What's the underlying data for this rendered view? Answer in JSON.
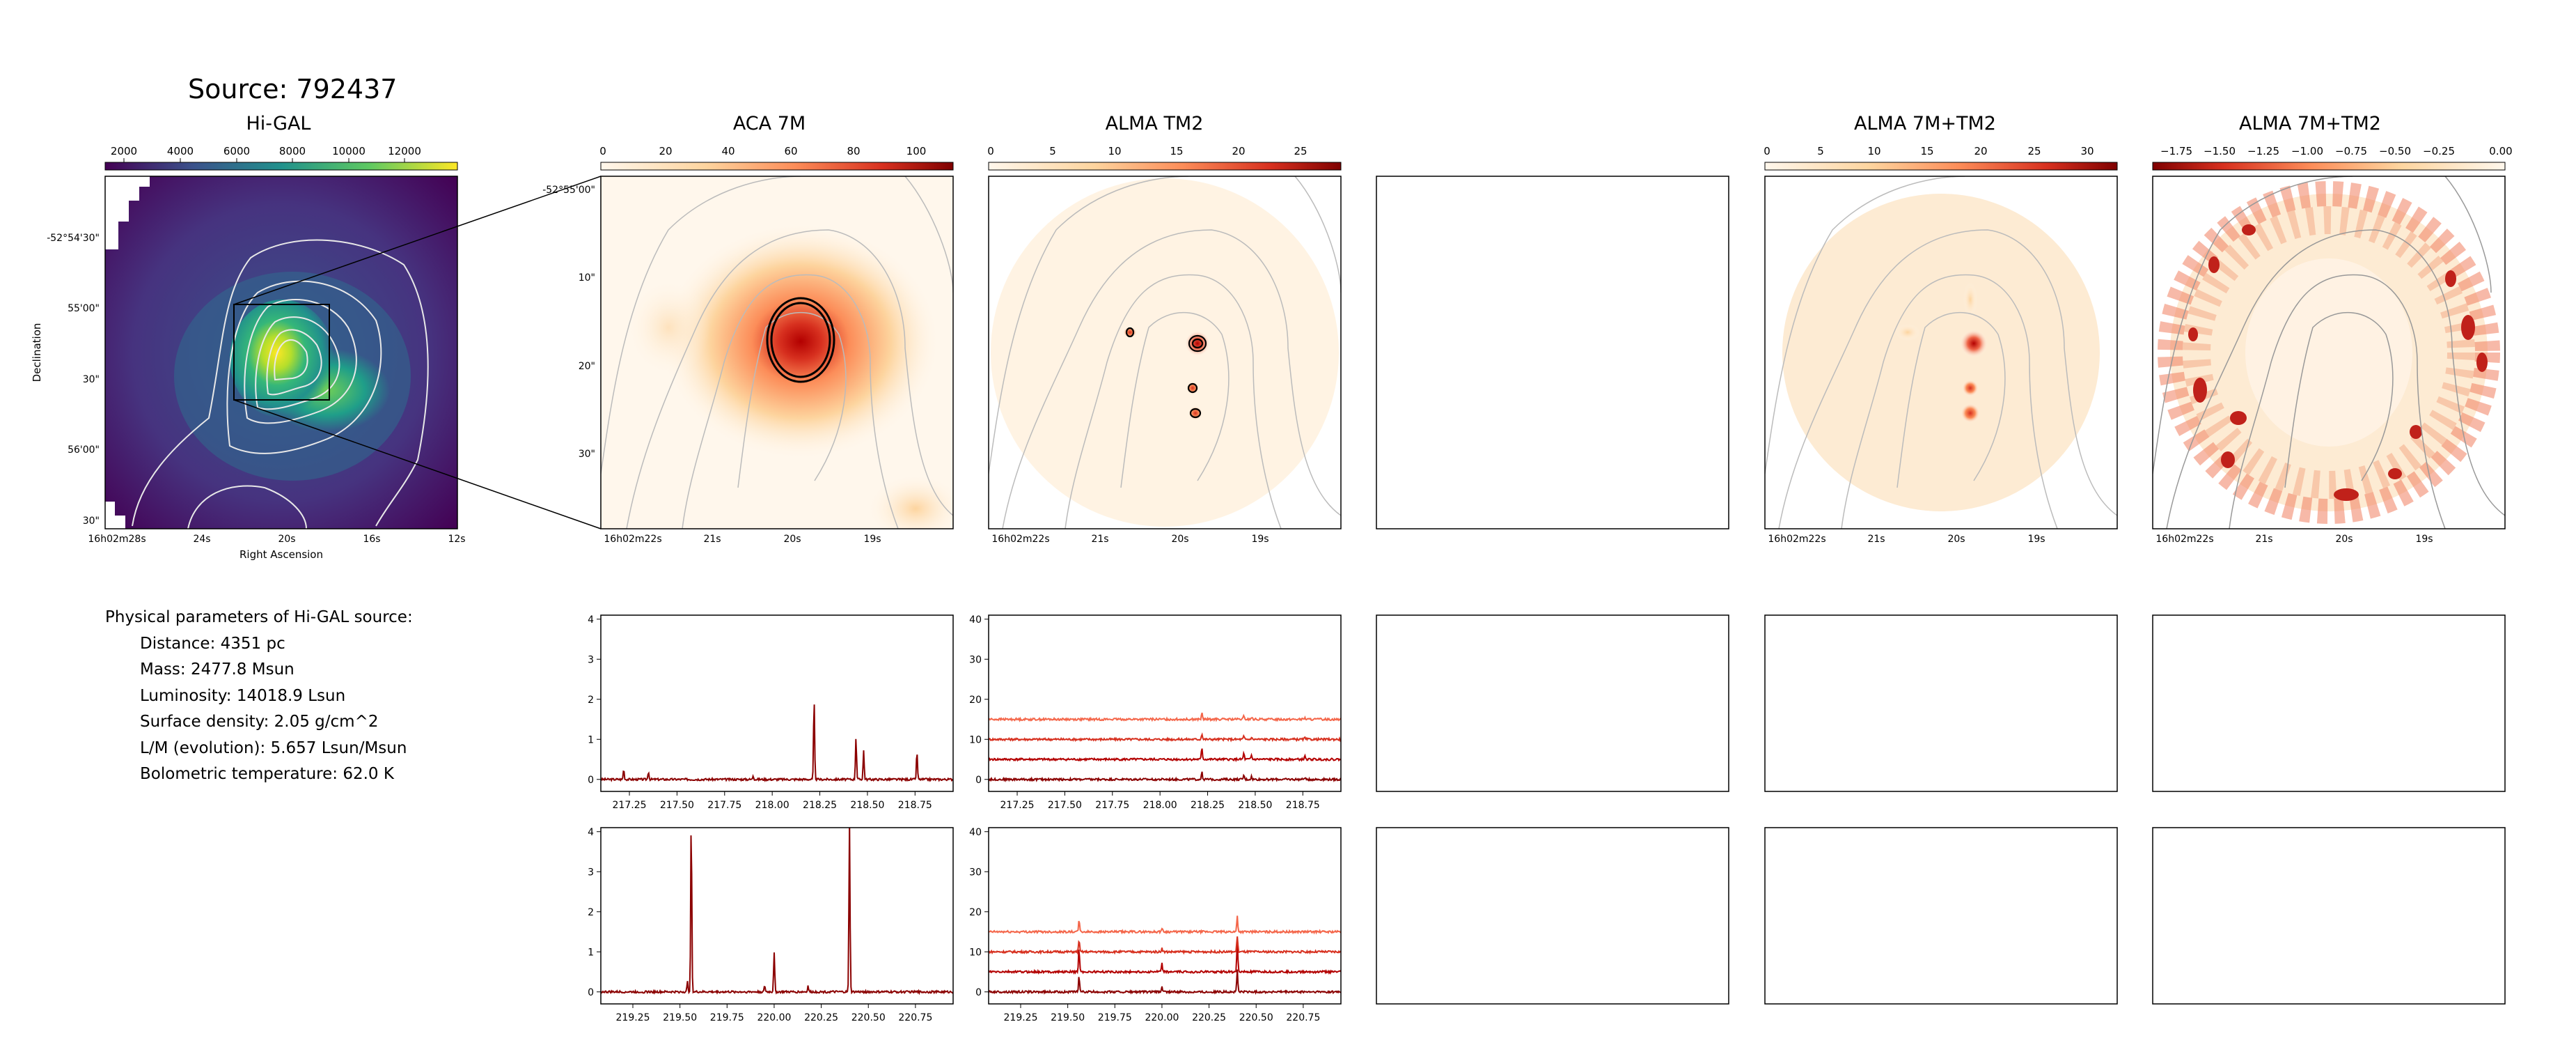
{
  "source_title": "Source: 792437",
  "panels": {
    "higal": "Hi-GAL",
    "aca": "ACA 7M",
    "tm2": "ALMA TM2",
    "combo": "ALMA 7M+TM2",
    "combo2": "ALMA 7M+TM2"
  },
  "axes": {
    "dec_label": "Declination",
    "ra_label": "Right Ascension",
    "dec_ticks_higal": [
      "-52°54'30\"",
      "55'00\"",
      "30\"",
      "56'00\"",
      "30\""
    ],
    "ra_ticks_higal": [
      "16h02m28s",
      "24s",
      "20s",
      "16s",
      "12s"
    ],
    "dec_ticks_zoom": [
      "-52°55'00\"",
      "10\"",
      "20\"",
      "30\""
    ],
    "ra_ticks_zoom": [
      "16h02m22s",
      "21s",
      "20s",
      "19s"
    ]
  },
  "colorbars": {
    "higal": [
      "2000",
      "4000",
      "6000",
      "8000",
      "10000",
      "12000"
    ],
    "aca": [
      "0",
      "20",
      "40",
      "60",
      "80",
      "100"
    ],
    "tm2": [
      "0",
      "5",
      "10",
      "15",
      "20",
      "25"
    ],
    "combo": [
      "0",
      "5",
      "10",
      "15",
      "20",
      "25",
      "30"
    ],
    "combo2": [
      "−1.75",
      "−1.50",
      "−1.25",
      "−1.00",
      "−0.75",
      "−0.50",
      "−0.25",
      "0.00"
    ]
  },
  "physical_params": {
    "heading": "Physical parameters of Hi-GAL source:",
    "distance": "Distance: 4351 pc",
    "mass": "Mass: 2477.8 Msun",
    "luminosity": "Luminosity: 14018.9 Lsun",
    "surface_density": "Surface density: 2.05 g/cm^2",
    "lm": "L/M (evolution): 5.657 Lsun/Msun",
    "tbol": "Bolometric temperature: 62.0 K"
  },
  "chart_data": [
    {
      "type": "line",
      "panel": "aca-spectrum-top",
      "xlim": [
        217.1,
        218.95
      ],
      "ylim": [
        -0.3,
        4.1
      ],
      "x_ticks": [
        "217.25",
        "217.50",
        "217.75",
        "218.00",
        "218.25",
        "218.50",
        "218.75"
      ],
      "y_ticks": [
        "0",
        "1",
        "2",
        "3",
        "4"
      ],
      "color": "#8b0000",
      "peaks": [
        [
          217.22,
          0.25
        ],
        [
          217.35,
          0.2
        ],
        [
          217.9,
          0.1
        ],
        [
          218.22,
          2.0
        ],
        [
          218.44,
          1.05
        ],
        [
          218.48,
          0.72
        ],
        [
          218.76,
          0.7
        ]
      ]
    },
    {
      "type": "line",
      "panel": "tm2-spectrum-top",
      "xlim": [
        217.1,
        218.95
      ],
      "ylim": [
        -3,
        41
      ],
      "x_ticks": [
        "217.25",
        "217.50",
        "217.75",
        "218.00",
        "218.25",
        "218.50",
        "218.75"
      ],
      "y_ticks": [
        "0",
        "10",
        "20",
        "30",
        "40"
      ],
      "series": [
        {
          "offset": 0,
          "color": "#8b0000"
        },
        {
          "offset": 5,
          "color": "#b30000"
        },
        {
          "offset": 10,
          "color": "#d7301f"
        },
        {
          "offset": 15,
          "color": "#f4664a"
        }
      ],
      "peaks": [
        [
          218.22,
          3.0
        ],
        [
          218.44,
          1.5
        ],
        [
          218.48,
          1.0
        ],
        [
          218.76,
          0.8
        ]
      ]
    },
    {
      "type": "line",
      "panel": "aca-spectrum-bottom",
      "xlim": [
        219.08,
        220.95
      ],
      "ylim": [
        -0.3,
        4.1
      ],
      "x_ticks": [
        "219.25",
        "219.50",
        "219.75",
        "220.00",
        "220.25",
        "220.50",
        "220.75"
      ],
      "y_ticks": [
        "0",
        "1",
        "2",
        "3",
        "4"
      ],
      "color": "#8b0000",
      "peaks": [
        [
          219.56,
          4.3
        ],
        [
          219.54,
          0.25
        ],
        [
          219.95,
          0.15
        ],
        [
          220.0,
          1.0
        ],
        [
          220.18,
          0.15
        ],
        [
          220.4,
          4.3
        ]
      ]
    },
    {
      "type": "line",
      "panel": "tm2-spectrum-bottom",
      "xlim": [
        219.08,
        220.95
      ],
      "ylim": [
        -3,
        41
      ],
      "x_ticks": [
        "219.25",
        "219.50",
        "219.75",
        "220.00",
        "220.25",
        "220.50",
        "220.75"
      ],
      "y_ticks": [
        "0",
        "10",
        "20",
        "30",
        "40"
      ],
      "series": [
        {
          "offset": 0,
          "color": "#8b0000"
        },
        {
          "offset": 5,
          "color": "#b30000"
        },
        {
          "offset": 10,
          "color": "#d7301f"
        },
        {
          "offset": 15,
          "color": "#f4664a"
        }
      ],
      "peaks": [
        [
          219.56,
          6.0
        ],
        [
          220.0,
          2.0
        ],
        [
          220.4,
          8.0
        ]
      ]
    }
  ]
}
